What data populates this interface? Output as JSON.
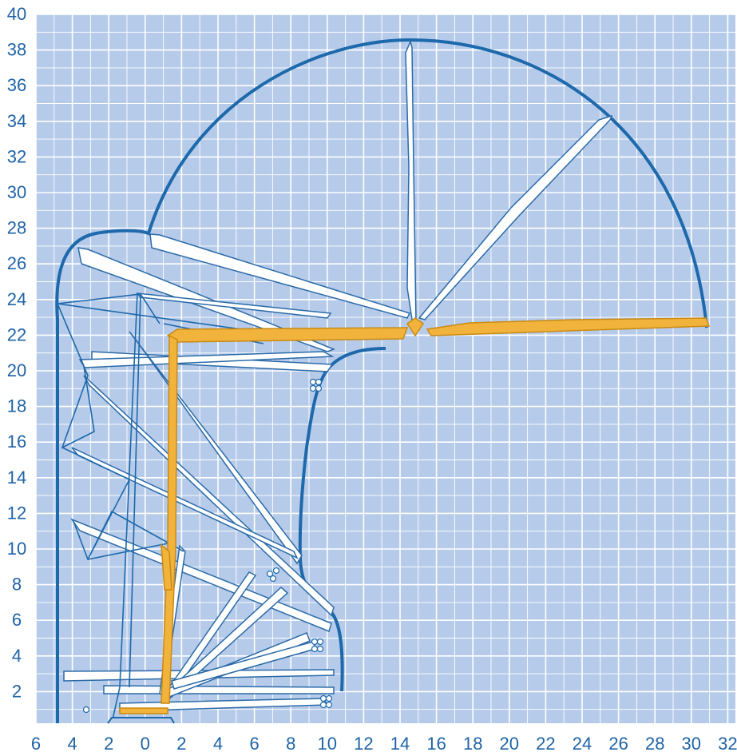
{
  "x_ticks": [
    "6",
    "4",
    "2",
    "0",
    "2",
    "4",
    "6",
    "8",
    "10",
    "12",
    "14",
    "16",
    "18",
    "20",
    "22",
    "24",
    "26",
    "28",
    "30",
    "32"
  ],
  "y_ticks": [
    "40",
    "38",
    "36",
    "34",
    "32",
    "30",
    "28",
    "26",
    "24",
    "22",
    "20",
    "18",
    "16",
    "14",
    "12",
    "10",
    "8",
    "6",
    "4",
    "2"
  ],
  "colors": {
    "background": "#b6cbea",
    "grid": "#ffffff",
    "outline": "#1d69ab",
    "boom": "#f2b33d",
    "boom_edge": "#c98a12",
    "tick_text": "#1f63a6",
    "member_fill": "#ffffff",
    "member_edge": "#2a6aa8"
  }
}
